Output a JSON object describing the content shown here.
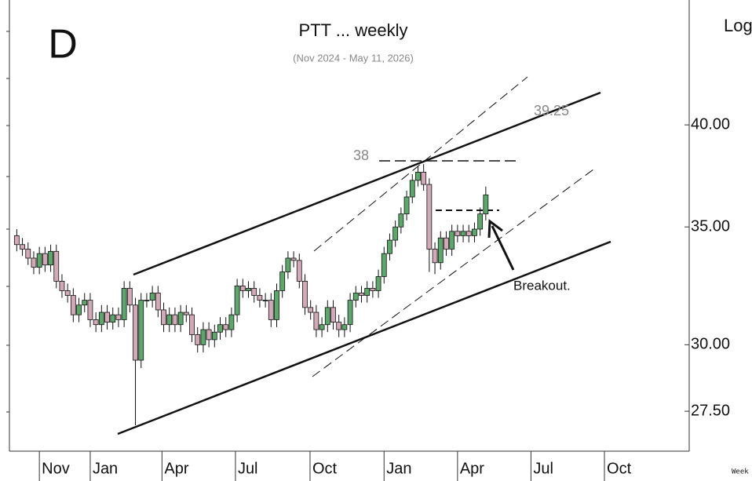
{
  "chart_data": {
    "type": "candlestick",
    "title": "PTT ... weekly",
    "subtitle": "(Nov 2024 - May 11, 2026)",
    "panel_label": "D",
    "scale_label": "Log",
    "footer": "Week",
    "log_scale": true,
    "up_color": "#5aa96a",
    "down_color": "#d3a9b8",
    "annotations": [
      {
        "label": "38"
      },
      {
        "label": "39.25"
      },
      {
        "label": "Breakout."
      }
    ],
    "x": [
      -4,
      -3,
      -2,
      -1,
      0,
      1,
      2,
      3,
      4,
      5,
      6,
      7,
      8,
      9,
      10,
      11,
      12,
      13,
      14,
      15,
      16,
      17,
      18,
      19,
      20,
      21,
      22,
      23,
      24,
      25,
      26,
      27,
      28,
      29,
      30,
      31,
      32,
      33,
      34,
      35,
      36,
      37,
      38,
      39,
      40,
      41,
      42,
      43,
      44,
      45,
      46,
      47,
      48,
      49,
      50,
      51,
      52,
      53,
      54,
      55,
      56,
      57,
      58,
      59,
      60,
      61,
      62,
      63,
      64,
      65,
      66,
      67,
      68,
      69,
      70,
      71,
      72,
      73,
      74,
      75,
      76,
      77,
      78,
      79
    ],
    "open": [
      34.6,
      34.2,
      34.0,
      33.6,
      33.2,
      33.8,
      33.3,
      33.9,
      32.6,
      32.2,
      32.0,
      31.2,
      31.6,
      31.8,
      31.0,
      30.8,
      31.3,
      30.9,
      31.2,
      31.0,
      32.3,
      31.6,
      29.4,
      31.8,
      31.8,
      32.1,
      31.4,
      30.8,
      31.2,
      30.8,
      31.3,
      31.2,
      30.4,
      30.0,
      30.6,
      30.2,
      30.5,
      30.8,
      30.6,
      31.2,
      32.4,
      32.2,
      32.3,
      32.0,
      31.8,
      31.8,
      31.0,
      32.2,
      33.0,
      33.6,
      33.5,
      32.6,
      31.5,
      31.3,
      30.6,
      30.8,
      31.5,
      30.9,
      30.6,
      30.8,
      31.8,
      32.1,
      32.0,
      32.3,
      32.2,
      32.8,
      33.8,
      34.4,
      35.0,
      35.6,
      36.4,
      37.2,
      37.6,
      37.0,
      34.0,
      33.4,
      34.5,
      34.0,
      34.8,
      34.6,
      34.8,
      34.6,
      34.9,
      35.6
    ],
    "high": [
      34.9,
      34.5,
      34.3,
      33.9,
      34.1,
      34.1,
      34.2,
      34.2,
      32.9,
      32.5,
      32.3,
      31.9,
      32.1,
      32.1,
      31.3,
      31.6,
      31.6,
      31.5,
      31.5,
      32.6,
      32.6,
      31.9,
      32.1,
      32.1,
      32.4,
      32.4,
      31.7,
      31.5,
      31.5,
      31.6,
      31.6,
      31.5,
      30.7,
      30.9,
      30.9,
      30.8,
      31.1,
      31.1,
      31.5,
      32.7,
      32.7,
      32.6,
      32.6,
      32.3,
      32.1,
      32.1,
      32.5,
      33.3,
      33.9,
      33.9,
      33.8,
      32.9,
      31.8,
      31.6,
      31.1,
      31.8,
      31.8,
      31.2,
      31.1,
      32.1,
      32.4,
      32.4,
      32.6,
      32.6,
      33.1,
      34.1,
      34.7,
      35.3,
      35.9,
      36.7,
      37.5,
      37.9,
      38.0,
      37.3,
      34.3,
      34.8,
      34.8,
      35.1,
      35.1,
      35.1,
      35.1,
      35.2,
      35.9,
      36.9
    ],
    "low": [
      33.9,
      33.7,
      33.3,
      32.9,
      32.9,
      33.0,
      33.0,
      32.3,
      31.9,
      31.7,
      30.9,
      30.9,
      31.3,
      30.7,
      30.5,
      30.5,
      30.6,
      30.6,
      30.7,
      30.7,
      31.3,
      27.0,
      29.1,
      31.5,
      31.5,
      31.1,
      30.5,
      30.5,
      30.5,
      30.5,
      30.9,
      30.1,
      29.7,
      29.7,
      29.9,
      29.9,
      30.2,
      30.3,
      30.3,
      30.9,
      31.9,
      31.9,
      31.7,
      31.5,
      31.5,
      30.7,
      30.7,
      31.9,
      32.7,
      33.2,
      32.3,
      31.2,
      31.0,
      30.3,
      30.3,
      30.5,
      30.6,
      30.3,
      30.3,
      30.5,
      31.5,
      31.7,
      31.7,
      31.9,
      31.9,
      32.5,
      33.5,
      34.1,
      34.7,
      35.3,
      36.1,
      36.9,
      36.7,
      33.0,
      32.9,
      33.1,
      33.7,
      33.7,
      34.3,
      34.3,
      34.3,
      34.3,
      34.6,
      35.3
    ],
    "close": [
      34.2,
      34.0,
      33.6,
      33.2,
      33.8,
      33.3,
      33.9,
      32.6,
      32.2,
      32.0,
      31.2,
      31.6,
      31.8,
      31.0,
      30.8,
      31.3,
      30.9,
      31.2,
      31.0,
      32.3,
      31.6,
      29.4,
      31.8,
      31.8,
      32.1,
      31.4,
      30.8,
      31.2,
      30.8,
      31.3,
      31.2,
      30.4,
      30.0,
      30.6,
      30.2,
      30.5,
      30.8,
      30.6,
      31.2,
      32.4,
      32.2,
      32.3,
      32.0,
      31.8,
      31.8,
      31.0,
      32.2,
      33.0,
      33.6,
      33.5,
      32.6,
      31.5,
      31.3,
      30.6,
      30.8,
      31.5,
      30.9,
      30.6,
      30.8,
      31.8,
      32.1,
      32.0,
      32.3,
      32.2,
      32.8,
      33.8,
      34.4,
      35.0,
      35.6,
      36.4,
      37.2,
      37.6,
      37.0,
      34.0,
      33.4,
      34.5,
      34.0,
      34.8,
      34.6,
      34.8,
      34.6,
      34.9,
      35.6,
      36.5
    ],
    "xlim": [
      -5.3,
      115
    ],
    "xticks": [
      {
        "value": 0,
        "label": "Nov"
      },
      {
        "value": 9,
        "label": "Jan"
      },
      {
        "value": 21.7,
        "label": "Apr"
      },
      {
        "value": 34.7,
        "label": "Jul"
      },
      {
        "value": 47.9,
        "label": "Oct"
      },
      {
        "value": 61,
        "label": "Jan"
      },
      {
        "value": 74,
        "label": "Apr"
      },
      {
        "value": 87,
        "label": "Jul"
      },
      {
        "value": 100,
        "label": "Oct"
      }
    ],
    "ylim": [
      26.1,
      47.1
    ],
    "yticks": [
      {
        "value": 27.5,
        "label": "27.50"
      },
      {
        "value": 30,
        "label": "30.00"
      },
      {
        "value": 35,
        "label": "35.00"
      },
      {
        "value": 40,
        "label": "40.00"
      }
    ]
  }
}
